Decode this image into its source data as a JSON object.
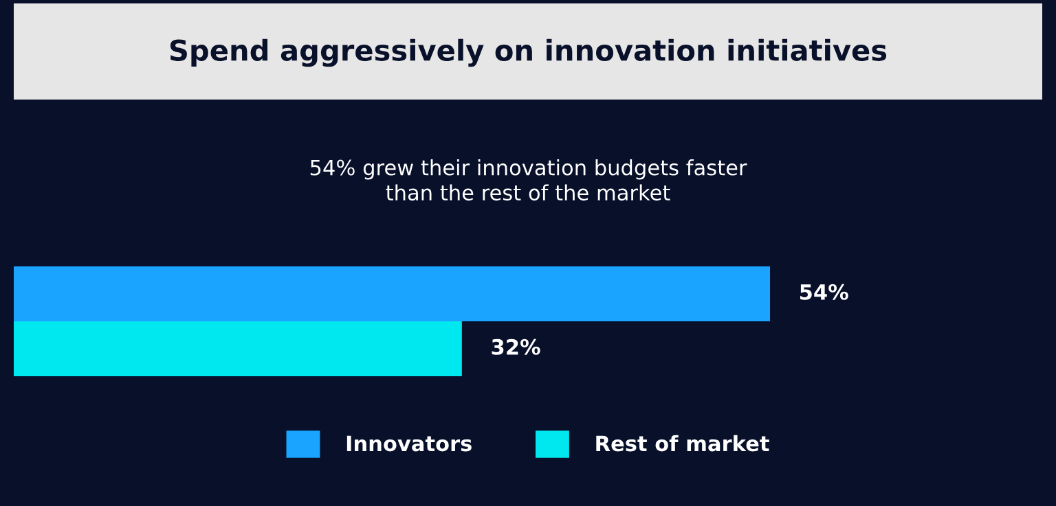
{
  "chart_data": {
    "type": "bar",
    "orientation": "horizontal",
    "title": "Spend aggressively on innovation initiatives",
    "subtitle": "54% grew their innovation budgets faster\nthan the rest of the market",
    "categories": [
      null
    ],
    "series": [
      {
        "name": "Innovators",
        "color": "#1aa3ff",
        "values": [
          54
        ],
        "value_labels": [
          "54%"
        ]
      },
      {
        "name": "Rest of market",
        "color": "#00e8ef",
        "values": [
          32
        ],
        "value_labels": [
          "32%"
        ]
      }
    ],
    "legend": "bottom",
    "grid": false,
    "tick_labels": false
  }
}
